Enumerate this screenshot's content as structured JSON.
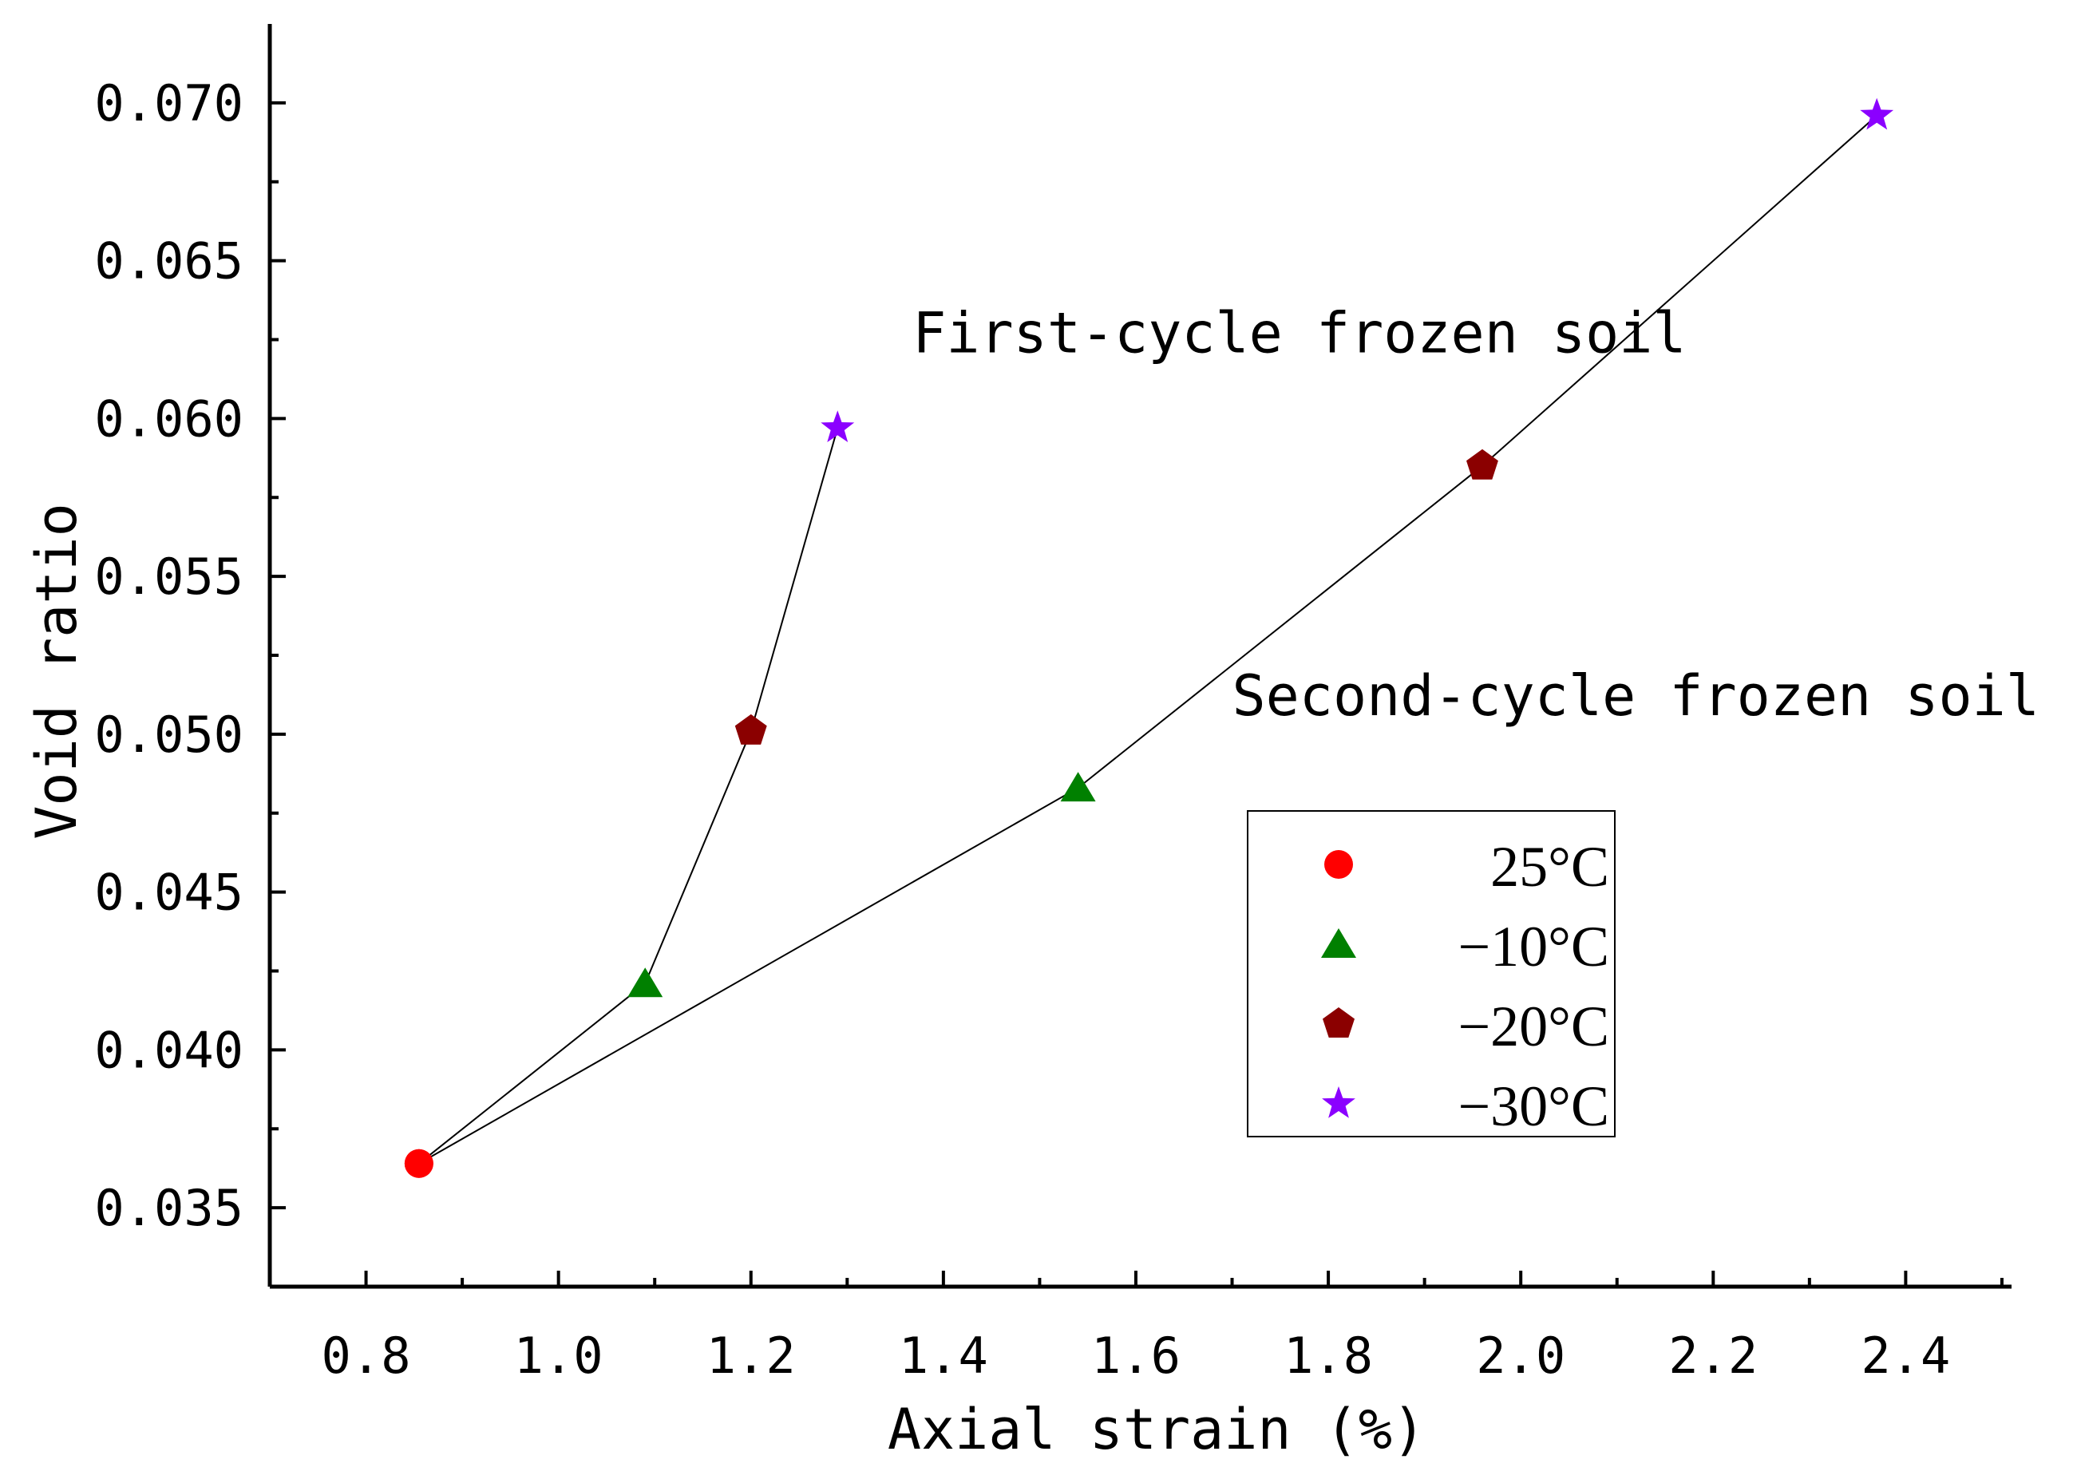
{
  "chart_data": {
    "type": "scatter",
    "xlabel": "Axial strain (%)",
    "ylabel": "Void ratio",
    "xlim": [
      0.7,
      2.51
    ],
    "ylim": [
      0.0325,
      0.0725
    ],
    "xticks": [
      "0.8",
      "1.0",
      "1.2",
      "1.4",
      "1.6",
      "1.8",
      "2.0",
      "2.2",
      "2.4"
    ],
    "yticks": [
      "0.035",
      "0.040",
      "0.045",
      "0.050",
      "0.055",
      "0.060",
      "0.065",
      "0.070"
    ],
    "legend_position": "center-right",
    "series": [
      {
        "name": "First-cycle frozen soil",
        "points": [
          {
            "x": 0.855,
            "y": 0.0364,
            "temp": "25°C"
          },
          {
            "x": 1.09,
            "y": 0.0421,
            "temp": "-10°C"
          },
          {
            "x": 1.2,
            "y": 0.0501,
            "temp": "-20°C"
          },
          {
            "x": 1.29,
            "y": 0.0597,
            "temp": "-30°C"
          }
        ]
      },
      {
        "name": "Second-cycle frozen soil",
        "points": [
          {
            "x": 0.855,
            "y": 0.0364,
            "temp": "25°C"
          },
          {
            "x": 1.54,
            "y": 0.0483,
            "temp": "-10°C"
          },
          {
            "x": 1.96,
            "y": 0.0585,
            "temp": "-20°C"
          },
          {
            "x": 2.37,
            "y": 0.0696,
            "temp": "-30°C"
          }
        ]
      }
    ],
    "annotations": [
      {
        "text": "First-cycle frozen soil",
        "x": 1.77,
        "y": 0.0621
      },
      {
        "text": "Second-cycle frozen soil",
        "x": 1.7,
        "y": 0.0506
      }
    ],
    "legend": [
      {
        "label": "25°C",
        "marker": "circle",
        "color": "#ff0000"
      },
      {
        "label": "−10°C",
        "marker": "triangle",
        "color": "#008000"
      },
      {
        "label": "−20°C",
        "marker": "pentagon",
        "color": "#8b0000"
      },
      {
        "label": "−30°C",
        "marker": "star",
        "color": "#8b00ff"
      }
    ]
  }
}
